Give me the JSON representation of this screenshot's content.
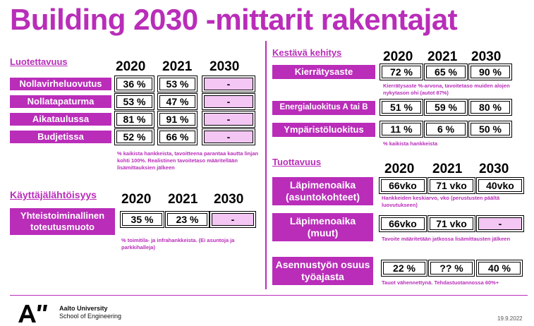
{
  "title": "Building 2030 -mittarit rakentajat",
  "years": [
    "2020",
    "2021",
    "2030"
  ],
  "reliability": {
    "heading": "Luotettavuus",
    "rows": [
      {
        "label": "Nollavirheluovutus",
        "v2020": "36 %",
        "v2021": "53 %",
        "v2030": "-"
      },
      {
        "label": "Nollatapaturma",
        "v2020": "53 %",
        "v2021": "47 %",
        "v2030": "-"
      },
      {
        "label": "Aikataulussa",
        "v2020": "81 %",
        "v2021": "91 %",
        "v2030": "-"
      },
      {
        "label": "Budjetissa",
        "v2020": "52 %",
        "v2021": "66 %",
        "v2030": "-"
      }
    ],
    "note": "% kaikista hankkeista, tavoitteena parantaa kautta linjan kohti 100%. Realistinen tavoitetaso määritellään lisämittauksien jälkeen"
  },
  "user": {
    "heading": "Käyttäjälähtöisyys",
    "label_line1": "Yhteistoiminallinen",
    "label_line2": "toteutusmuoto",
    "v2020": "35 %",
    "v2021": "23 %",
    "v2030": "-",
    "note": "% toimitila- ja infrahankkeista. (Ei asuntoja ja parkkihalleja)"
  },
  "sustainability": {
    "heading": "Kestävä kehitys",
    "rows": [
      {
        "label": "Kierrätysaste",
        "v2020": "72 %",
        "v2021": "65 %",
        "v2030": "90 %",
        "note": "Kierrätysaste %-arvona, tavoitetaso muiden alojen nykytason ohi (autot 87%)"
      },
      {
        "label": "Energialuokitus A tai B",
        "v2020": "51 %",
        "v2021": "59 %",
        "v2030": "80 %",
        "note": ""
      },
      {
        "label": "Ympäristöluokitus",
        "v2020": "11 %",
        "v2021": "6 %",
        "v2030": "50 %",
        "note": "% kaikista hankkeista"
      }
    ]
  },
  "productivity": {
    "heading": "Tuottavuus",
    "rows": [
      {
        "label_line1": "Läpimenoaika",
        "label_line2": "(asuntokohteet)",
        "v2020": "66vko",
        "v2021": "71 vko",
        "v2030": "40vko",
        "note": "Hankkeiden keskiarvo, vko (perustusten päältä luovutukseen)"
      },
      {
        "label_line1": "Läpimenoaika",
        "label_line2": "(muut)",
        "v2020": "66vko",
        "v2021": "71 vko",
        "v2030": "-",
        "note": "Tavoite määritetään jatkossa lisämittausten jälkeen"
      },
      {
        "label_line1": "Asennustyön osuus",
        "label_line2": "työajasta",
        "v2020": "22 %",
        "v2021": "?? %",
        "v2030": "40 %",
        "note": "Tauot vähennettynä. Tehdastuotannossa 60%+"
      }
    ]
  },
  "footer": {
    "university": "Aalto University",
    "school": "School of Engineering",
    "date": "19.9.2022",
    "logo_icon": "aalto-a-logo-icon"
  },
  "colors": {
    "accent": "#b92db9",
    "empty_cell": "#f3c6f3"
  }
}
